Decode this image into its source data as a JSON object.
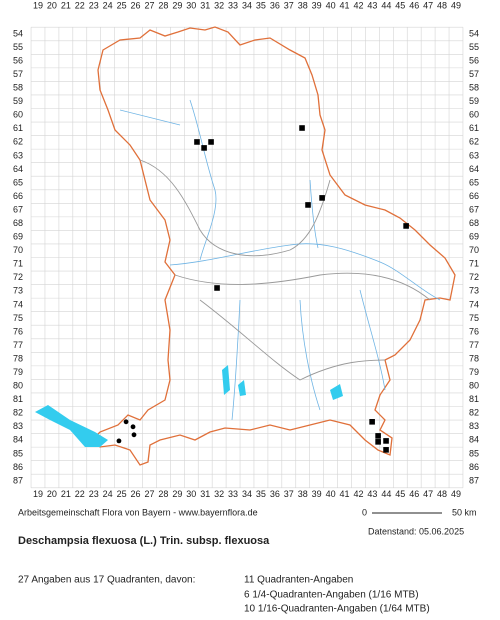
{
  "map": {
    "columns": [
      19,
      20,
      21,
      22,
      23,
      24,
      25,
      26,
      27,
      28,
      29,
      30,
      31,
      32,
      33,
      34,
      35,
      36,
      37,
      38,
      39,
      40,
      41,
      42,
      43,
      44,
      45,
      46,
      47,
      48,
      49
    ],
    "rows": [
      54,
      55,
      56,
      57,
      58,
      59,
      60,
      61,
      62,
      63,
      64,
      65,
      66,
      67,
      68,
      69,
      70,
      71,
      72,
      73,
      74,
      75,
      76,
      77,
      78,
      79,
      80,
      81,
      82,
      83,
      84,
      85,
      86,
      87
    ],
    "occurrences": [
      {
        "x": 30.41,
        "y": 61.97,
        "marker": "square"
      },
      {
        "x": 30.92,
        "y": 62.41,
        "marker": "square"
      },
      {
        "x": 31.42,
        "y": 61.97,
        "marker": "square"
      },
      {
        "x": 37.95,
        "y": 60.94,
        "marker": "square"
      },
      {
        "x": 39.39,
        "y": 66.1,
        "marker": "square"
      },
      {
        "x": 38.38,
        "y": 66.62,
        "marker": "square"
      },
      {
        "x": 45.42,
        "y": 68.17,
        "marker": "square"
      },
      {
        "x": 31.85,
        "y": 72.75,
        "marker": "square"
      },
      {
        "x": 42.98,
        "y": 82.63,
        "marker": "square"
      },
      {
        "x": 43.41,
        "y": 83.67,
        "marker": "square"
      },
      {
        "x": 43.41,
        "y": 84.11,
        "marker": "square"
      },
      {
        "x": 43.98,
        "y": 84.04,
        "marker": "square"
      },
      {
        "x": 43.98,
        "y": 84.7,
        "marker": "square"
      },
      {
        "x": 25.32,
        "y": 82.63,
        "marker": "circle"
      },
      {
        "x": 25.82,
        "y": 83.0,
        "marker": "circle"
      },
      {
        "x": 25.89,
        "y": 83.59,
        "marker": "circle"
      },
      {
        "x": 24.81,
        "y": 84.04,
        "marker": "circle"
      }
    ]
  },
  "footer": {
    "credit": "Arbeitsgemeinschaft Flora von Bayern - www.bayernflora.de",
    "scale_start": "0",
    "scale_end": "50 km",
    "date": "Datenstand: 05.06.2025",
    "title": "Deschampsia flexuosa (L.) Trin. subsp. flexuosa",
    "summary": "27 Angaben aus 17 Quadranten, davon:",
    "details": [
      "11 Quadranten-Angaben",
      "6 1/4-Quadranten-Angaben (1/16 MTB)",
      "10 1/16-Quadranten-Angaben (1/64 MTB)"
    ]
  }
}
